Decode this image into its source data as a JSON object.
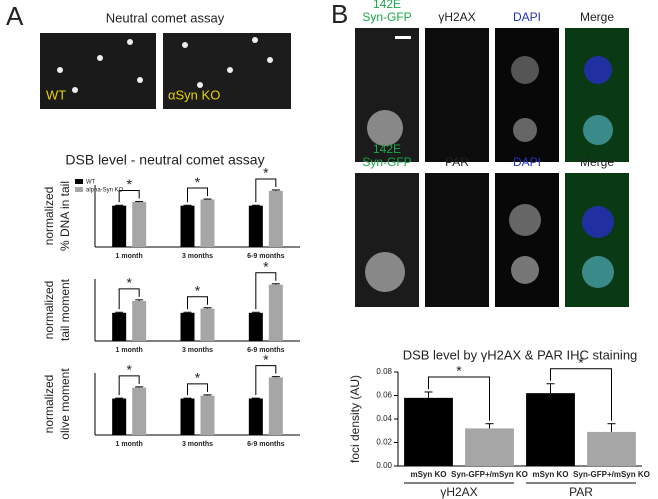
{
  "panels": {
    "a": "A",
    "b": "B"
  },
  "comet": {
    "title": "Neutral comet assay",
    "images": [
      "WT",
      "αSyn KO"
    ]
  },
  "section_a_title": "DSB level - neutral comet assay",
  "micro": {
    "row1": [
      [
        "142E",
        "Syn-GFP"
      ],
      [
        "γH2AX"
      ],
      [
        "DAPI"
      ],
      [
        "Merge"
      ]
    ],
    "row2": [
      [
        "142E",
        "Syn-GFP"
      ],
      [
        "PAR"
      ],
      [
        "DAPI"
      ],
      [
        "Merge"
      ]
    ]
  },
  "chart_data": [
    {
      "type": "bar",
      "ylabel": [
        "normalized",
        "% DNA in tail"
      ],
      "categories": [
        "1 month",
        "3 months",
        "6-9 months"
      ],
      "ylim": [
        0,
        1.5
      ],
      "legend": "top-left",
      "series": [
        {
          "name": "WT",
          "color": "#000000",
          "values": [
            1,
            1,
            1
          ],
          "errors": [
            0.01,
            0.01,
            0.01
          ]
        },
        {
          "name": "alpha-Syn KO",
          "color": "#a6a6a6",
          "values": [
            1.09,
            1.15,
            1.36
          ],
          "errors": [
            0.01,
            0.01,
            0.02
          ]
        }
      ],
      "annotations": [
        "*",
        "*",
        "*"
      ]
    },
    {
      "type": "bar",
      "ylabel": [
        "normalized",
        "tail moment"
      ],
      "categories": [
        "1 month",
        "3 months",
        "6-9 months"
      ],
      "ylim": [
        0,
        2.2
      ],
      "series": [
        {
          "name": "WT",
          "color": "#000000",
          "values": [
            1,
            1,
            1
          ],
          "errors": [
            0.02,
            0.02,
            0.02
          ]
        },
        {
          "name": "alpha-Syn KO",
          "color": "#a6a6a6",
          "values": [
            1.42,
            1.15,
            2.0
          ],
          "errors": [
            0.04,
            0.03,
            0.03
          ]
        }
      ],
      "annotations": [
        "*",
        "*",
        "*"
      ]
    },
    {
      "type": "bar",
      "ylabel": [
        "normalized",
        "olive moment"
      ],
      "categories": [
        "1 month",
        "3 months",
        "6-9 months"
      ],
      "ylim": [
        0,
        1.7
      ],
      "series": [
        {
          "name": "WT",
          "color": "#000000",
          "values": [
            1,
            1,
            1
          ],
          "errors": [
            0.01,
            0.01,
            0.01
          ]
        },
        {
          "name": "alpha-Syn KO",
          "color": "#a6a6a6",
          "values": [
            1.3,
            1.08,
            1.58
          ],
          "errors": [
            0.02,
            0.02,
            0.02
          ]
        }
      ],
      "annotations": [
        "*",
        "*",
        "*"
      ]
    },
    {
      "type": "bar",
      "title": "DSB level by γH2AX & PAR IHC staining",
      "ylabel": [
        "foci density (AU)"
      ],
      "categories": [
        "mSyn KO",
        "Syn-GFP+/mSyn KO",
        "mSyn KO",
        "Syn-GFP+/mSyn KO"
      ],
      "groups": [
        "γH2AX",
        "PAR"
      ],
      "values": [
        0.058,
        0.032,
        0.062,
        0.029
      ],
      "errors": [
        0.005,
        0.004,
        0.008,
        0.007
      ],
      "colors": [
        "#000000",
        "#a6a6a6",
        "#000000",
        "#a6a6a6"
      ],
      "ylim": [
        0,
        0.08
      ],
      "yticks": [
        {
          "value": 0,
          "label": "0.00"
        },
        {
          "value": 0.02,
          "label": "0.02"
        },
        {
          "value": 0.04,
          "label": "0.04"
        },
        {
          "value": 0.06,
          "label": "0.06"
        },
        {
          "value": 0.08,
          "label": "0.08"
        }
      ],
      "annotations": [
        "*",
        "*"
      ]
    }
  ]
}
